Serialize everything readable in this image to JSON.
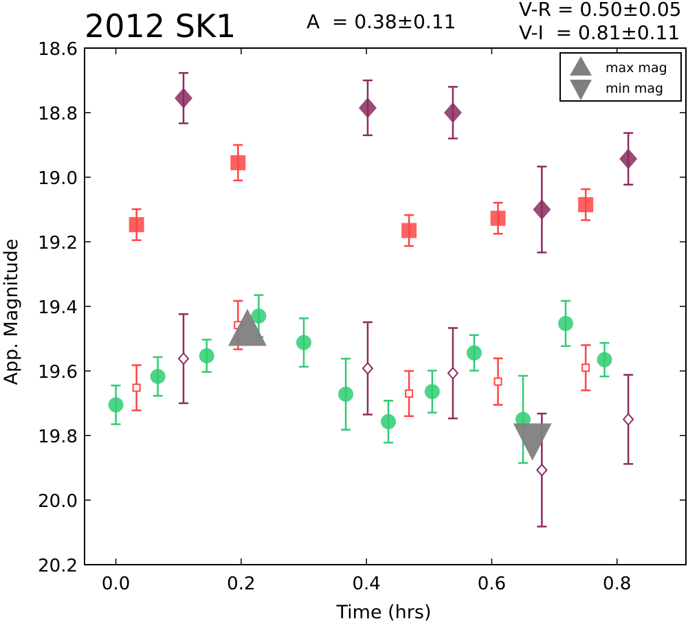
{
  "header": {
    "title": "2012 SK1",
    "amplitude": "A  = 0.38±0.11",
    "color_vr": "V-R = 0.50±0.05",
    "color_vi": "V-I  = 0.81±0.11"
  },
  "chart_data": {
    "type": "scatter",
    "xlabel": "Time (hrs)",
    "ylabel": "App. Magnitude",
    "xlim": [
      -0.05,
      0.91
    ],
    "ylim": [
      20.2,
      18.6
    ],
    "y_inverted": true,
    "grid": false,
    "xticks": [
      "0.0",
      "0.2",
      "0.4",
      "0.6",
      "0.8"
    ],
    "yticks": [
      "18.6",
      "18.8",
      "19.0",
      "19.2",
      "19.4",
      "19.6",
      "19.8",
      "20.0",
      "20.2"
    ],
    "legend": {
      "position": "top-right",
      "entries": [
        {
          "label": "max mag",
          "marker": "triangle-up",
          "color": "#7f7f7f"
        },
        {
          "label": "min mag",
          "marker": "triangle-down",
          "color": "#7f7f7f"
        }
      ]
    },
    "series": [
      {
        "marker": "circle",
        "filled": true,
        "color": "#2ecc71",
        "points": [
          {
            "x": 0.0,
            "y": 19.705,
            "err": 0.06
          },
          {
            "x": 0.067,
            "y": 19.617,
            "err": 0.06
          },
          {
            "x": 0.145,
            "y": 19.553,
            "err": 0.05
          },
          {
            "x": 0.228,
            "y": 19.43,
            "err": 0.065
          },
          {
            "x": 0.3,
            "y": 19.512,
            "err": 0.075
          },
          {
            "x": 0.367,
            "y": 19.672,
            "err": 0.11
          },
          {
            "x": 0.435,
            "y": 19.757,
            "err": 0.065
          },
          {
            "x": 0.505,
            "y": 19.664,
            "err": 0.065
          },
          {
            "x": 0.572,
            "y": 19.544,
            "err": 0.055
          },
          {
            "x": 0.65,
            "y": 19.75,
            "err": 0.135
          },
          {
            "x": 0.718,
            "y": 19.453,
            "err": 0.07
          },
          {
            "x": 0.78,
            "y": 19.565,
            "err": 0.052
          }
        ]
      },
      {
        "marker": "square",
        "filled": true,
        "color": "#ff4444",
        "points": [
          {
            "x": 0.033,
            "y": 19.147,
            "err": 0.048
          },
          {
            "x": 0.195,
            "y": 18.955,
            "err": 0.055
          },
          {
            "x": 0.468,
            "y": 19.165,
            "err": 0.048
          },
          {
            "x": 0.61,
            "y": 19.127,
            "err": 0.048
          },
          {
            "x": 0.75,
            "y": 19.085,
            "err": 0.048
          }
        ]
      },
      {
        "marker": "diamond",
        "filled": true,
        "color": "#8b2a5e",
        "points": [
          {
            "x": 0.108,
            "y": 18.755,
            "err": 0.078
          },
          {
            "x": 0.402,
            "y": 18.785,
            "err": 0.085
          },
          {
            "x": 0.538,
            "y": 18.8,
            "err": 0.08
          },
          {
            "x": 0.68,
            "y": 19.1,
            "err": 0.133
          },
          {
            "x": 0.818,
            "y": 18.943,
            "err": 0.08
          }
        ]
      },
      {
        "marker": "square",
        "filled": false,
        "color": "#ff4444",
        "points": [
          {
            "x": 0.033,
            "y": 19.652,
            "err": 0.07
          },
          {
            "x": 0.195,
            "y": 19.458,
            "err": 0.075
          },
          {
            "x": 0.468,
            "y": 19.67,
            "err": 0.07
          },
          {
            "x": 0.61,
            "y": 19.633,
            "err": 0.072
          },
          {
            "x": 0.75,
            "y": 19.59,
            "err": 0.07
          }
        ]
      },
      {
        "marker": "diamond",
        "filled": false,
        "color": "#8b2a5e",
        "points": [
          {
            "x": 0.108,
            "y": 19.562,
            "err": 0.138
          },
          {
            "x": 0.402,
            "y": 19.592,
            "err": 0.143
          },
          {
            "x": 0.538,
            "y": 19.607,
            "err": 0.14
          },
          {
            "x": 0.68,
            "y": 19.907,
            "err": 0.175
          },
          {
            "x": 0.818,
            "y": 19.75,
            "err": 0.138
          }
        ]
      }
    ],
    "extrema": [
      {
        "label": "max mag",
        "marker": "triangle-up",
        "color": "#7f7f7f",
        "x": 0.21,
        "y": 19.465
      },
      {
        "label": "min mag",
        "marker": "triangle-down",
        "color": "#7f7f7f",
        "x": 0.665,
        "y": 19.82
      }
    ]
  }
}
